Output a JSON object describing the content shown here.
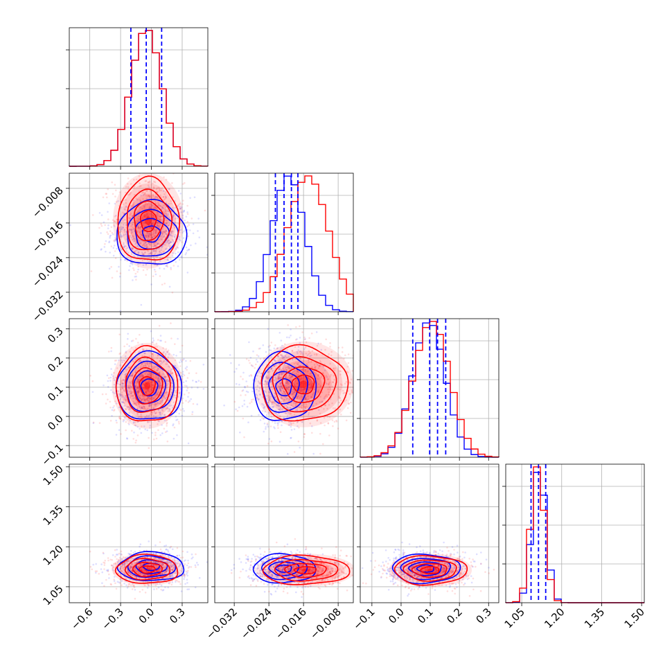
{
  "chart_data": {
    "type": "corner",
    "title": "",
    "grid": true,
    "colors": {
      "series_a": "#0000ff",
      "series_b": "#ff0000"
    },
    "series": [
      {
        "name": "",
        "color": "#0000ff"
      },
      {
        "name": "",
        "color": "#ff0000"
      }
    ],
    "parameters": [
      {
        "range": [
          -0.8,
          0.55
        ],
        "ticks": [
          -0.6,
          -0.3,
          0.0,
          0.3
        ],
        "tick_labels": [
          "−0.6",
          "−0.3",
          "0.0",
          "0.3"
        ]
      },
      {
        "range": [
          -0.0365,
          -0.0045
        ],
        "ticks": [
          -0.032,
          -0.024,
          -0.016,
          -0.008
        ],
        "tick_labels": [
          "−0.032",
          "−0.024",
          "−0.016",
          "−0.008"
        ]
      },
      {
        "range": [
          -0.14,
          0.335
        ],
        "ticks": [
          -0.1,
          0.0,
          0.1,
          0.2,
          0.3
        ],
        "tick_labels": [
          "−0.1",
          "0.0",
          "0.1",
          "0.2",
          "0.3"
        ]
      },
      {
        "range": [
          0.99,
          1.51
        ],
        "ticks": [
          1.05,
          1.2,
          1.35,
          1.5
        ],
        "tick_labels": [
          "1.05",
          "1.20",
          "1.35",
          "1.50"
        ]
      }
    ],
    "marginals": [
      {
        "blue": {
          "mean": -0.05,
          "sd": 0.15,
          "quantiles": [
            -0.2,
            -0.05,
            0.1
          ]
        },
        "red": {
          "mean": -0.05,
          "sd": 0.15
        }
      },
      {
        "blue": {
          "mean": -0.0195,
          "sd": 0.0038,
          "quantiles": [
            -0.0225,
            -0.0205,
            -0.0188,
            -0.0173
          ]
        },
        "red": {
          "mean": -0.015,
          "sd": 0.0048
        }
      },
      {
        "blue": {
          "mean": 0.095,
          "sd": 0.056,
          "quantiles": [
            0.04,
            0.098,
            0.153,
            0.125
          ]
        },
        "red": {
          "mean": 0.105,
          "sd": 0.062
        }
      },
      {
        "blue": {
          "mean": 1.115,
          "sd": 0.026,
          "quantiles": [
            1.085,
            1.113,
            1.14
          ]
        },
        "red": {
          "mean": 1.11,
          "sd": 0.026
        }
      }
    ],
    "joint": [
      {
        "x": 0,
        "y": 1,
        "blue": {
          "cx": 0.0,
          "cy": -0.0185,
          "sx": 0.17,
          "sy": 0.0037
        },
        "red": {
          "cx": -0.03,
          "cy": -0.0155,
          "sx": 0.15,
          "sy": 0.0048
        }
      },
      {
        "x": 0,
        "y": 2,
        "blue": {
          "cx": -0.02,
          "cy": 0.1,
          "sx": 0.16,
          "sy": 0.058
        },
        "red": {
          "cx": -0.04,
          "cy": 0.105,
          "sx": 0.15,
          "sy": 0.064
        }
      },
      {
        "x": 1,
        "y": 2,
        "blue": {
          "cx": -0.0205,
          "cy": 0.1,
          "sx": 0.0036,
          "sy": 0.058
        },
        "red": {
          "cx": -0.016,
          "cy": 0.11,
          "sx": 0.005,
          "sy": 0.064
        }
      },
      {
        "x": 0,
        "y": 3,
        "blue": {
          "cx": 0.0,
          "cy": 1.125,
          "sx": 0.16,
          "sy": 0.027
        },
        "red": {
          "cx": -0.04,
          "cy": 1.115,
          "sx": 0.15,
          "sy": 0.027
        }
      },
      {
        "x": 1,
        "y": 3,
        "blue": {
          "cx": -0.0205,
          "cy": 1.118,
          "sx": 0.0036,
          "sy": 0.027
        },
        "red": {
          "cx": -0.0155,
          "cy": 1.112,
          "sx": 0.005,
          "sy": 0.027
        }
      },
      {
        "x": 2,
        "y": 3,
        "blue": {
          "cx": 0.085,
          "cy": 1.118,
          "sx": 0.058,
          "sy": 0.027
        },
        "red": {
          "cx": 0.1,
          "cy": 1.112,
          "sx": 0.062,
          "sy": 0.027
        }
      }
    ]
  }
}
